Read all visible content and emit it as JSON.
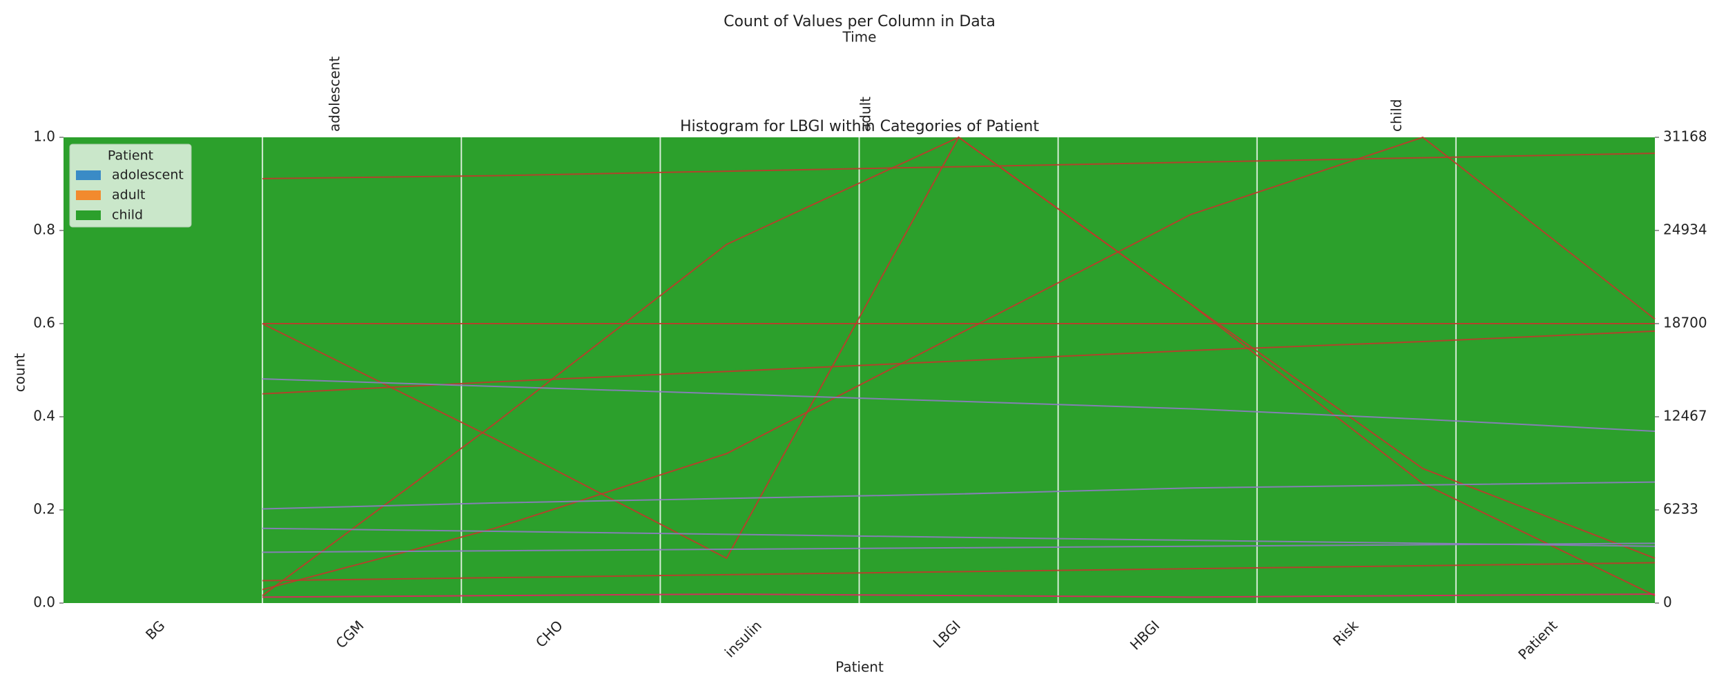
{
  "chart_data": [
    {
      "type": "histogram",
      "title": "Histogram for LBGI within Categories of Patient",
      "x_label": "Patient",
      "y_label": "count",
      "categories": [
        "BG",
        "CGM",
        "CHO",
        "insulin",
        "LBGI",
        "HBGI",
        "Risk",
        "Patient"
      ],
      "legend_title": "Patient",
      "legend": "upper left",
      "ylim": [
        0,
        1
      ],
      "yticks": [
        {
          "value": 0,
          "label": "0.0"
        },
        {
          "value": 0.2,
          "label": "0.2"
        },
        {
          "value": 0.4,
          "label": "0.4"
        },
        {
          "value": 0.6,
          "label": "0.6"
        },
        {
          "value": 0.8,
          "label": "0.8"
        },
        {
          "value": 1,
          "label": "1.0"
        }
      ],
      "series": [
        {
          "name": "adolescent",
          "color": "#3a8bc6",
          "values": [
            0,
            0,
            0,
            0,
            0,
            0,
            0,
            0
          ]
        },
        {
          "name": "adult",
          "color": "#f28a2e",
          "values": [
            0,
            0,
            0,
            0,
            0,
            0,
            0,
            0
          ]
        },
        {
          "name": "child",
          "color": "#2ca02c",
          "values": [
            1,
            1,
            1,
            1,
            1,
            1,
            1,
            1
          ]
        }
      ]
    },
    {
      "type": "line",
      "title": "Count of Values per Column in Data",
      "x_label": "Time",
      "top_categories": [
        "adolescent",
        "adult",
        "child"
      ],
      "y2lim": [
        0,
        31168
      ],
      "y2ticks": [
        0,
        6233,
        12467,
        18700,
        24934,
        31168
      ],
      "series": [
        {
          "color": "#c0392b",
          "axis": "y2",
          "values": [
            500,
            12000,
            24000,
            31168,
            20000,
            8000,
            500
          ]
        },
        {
          "color": "#c0392b",
          "axis": "y2",
          "values": [
            18700,
            11000,
            3000,
            31168,
            20000,
            9000,
            3000
          ]
        },
        {
          "color": "#c0392b",
          "axis": "y2",
          "values": [
            900,
            5000,
            10000,
            18000,
            26000,
            31168,
            19000
          ]
        },
        {
          "color": "#c0392b",
          "axis": "y2",
          "values": [
            28400,
            28600,
            28900,
            29200,
            29500,
            29800,
            30100
          ]
        },
        {
          "color": "#c0392b",
          "axis": "y2",
          "values": [
            18700,
            18700,
            18700,
            18700,
            18700,
            18700,
            18700
          ]
        },
        {
          "color": "#c0392b",
          "axis": "y2",
          "values": [
            14000,
            14800,
            15500,
            16200,
            16900,
            17500,
            18200
          ]
        },
        {
          "color": "#8e7cc3",
          "axis": "y2",
          "values": [
            15000,
            14500,
            14000,
            13500,
            13000,
            12300,
            11500
          ]
        },
        {
          "color": "#8e7cc3",
          "axis": "y2",
          "values": [
            6300,
            6700,
            7000,
            7300,
            7700,
            7900,
            8100
          ]
        },
        {
          "color": "#8e7cc3",
          "axis": "y2",
          "values": [
            5000,
            4800,
            4600,
            4400,
            4200,
            4000,
            3800
          ]
        },
        {
          "color": "#8e7cc3",
          "axis": "y2",
          "values": [
            3400,
            3500,
            3600,
            3700,
            3800,
            3900,
            4000
          ]
        },
        {
          "color": "#c0392b",
          "axis": "y2",
          "values": [
            1500,
            1700,
            1900,
            2100,
            2300,
            2500,
            2700
          ]
        },
        {
          "color": "#e0245e",
          "axis": "y2",
          "values": [
            400,
            500,
            600,
            500,
            400,
            500,
            600
          ]
        }
      ]
    }
  ]
}
